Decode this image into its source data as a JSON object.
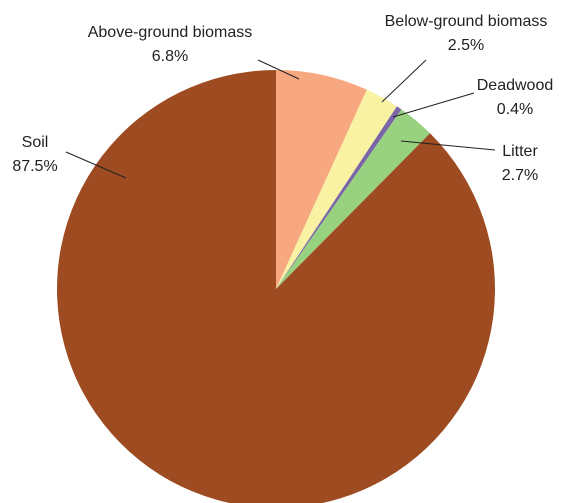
{
  "chart_data": {
    "type": "pie",
    "categories": [
      "Above-ground biomass",
      "Below-ground biomass",
      "Deadwood",
      "Litter",
      "Soil"
    ],
    "values": [
      6.8,
      2.5,
      0.4,
      2.7,
      87.5
    ],
    "value_labels": [
      "6.8%",
      "2.5%",
      "0.4%",
      "2.7%",
      "87.5%"
    ],
    "colors": [
      "#f7a880",
      "#f8f2a2",
      "#7a66a6",
      "#98d17f",
      "#9e4b21"
    ]
  }
}
